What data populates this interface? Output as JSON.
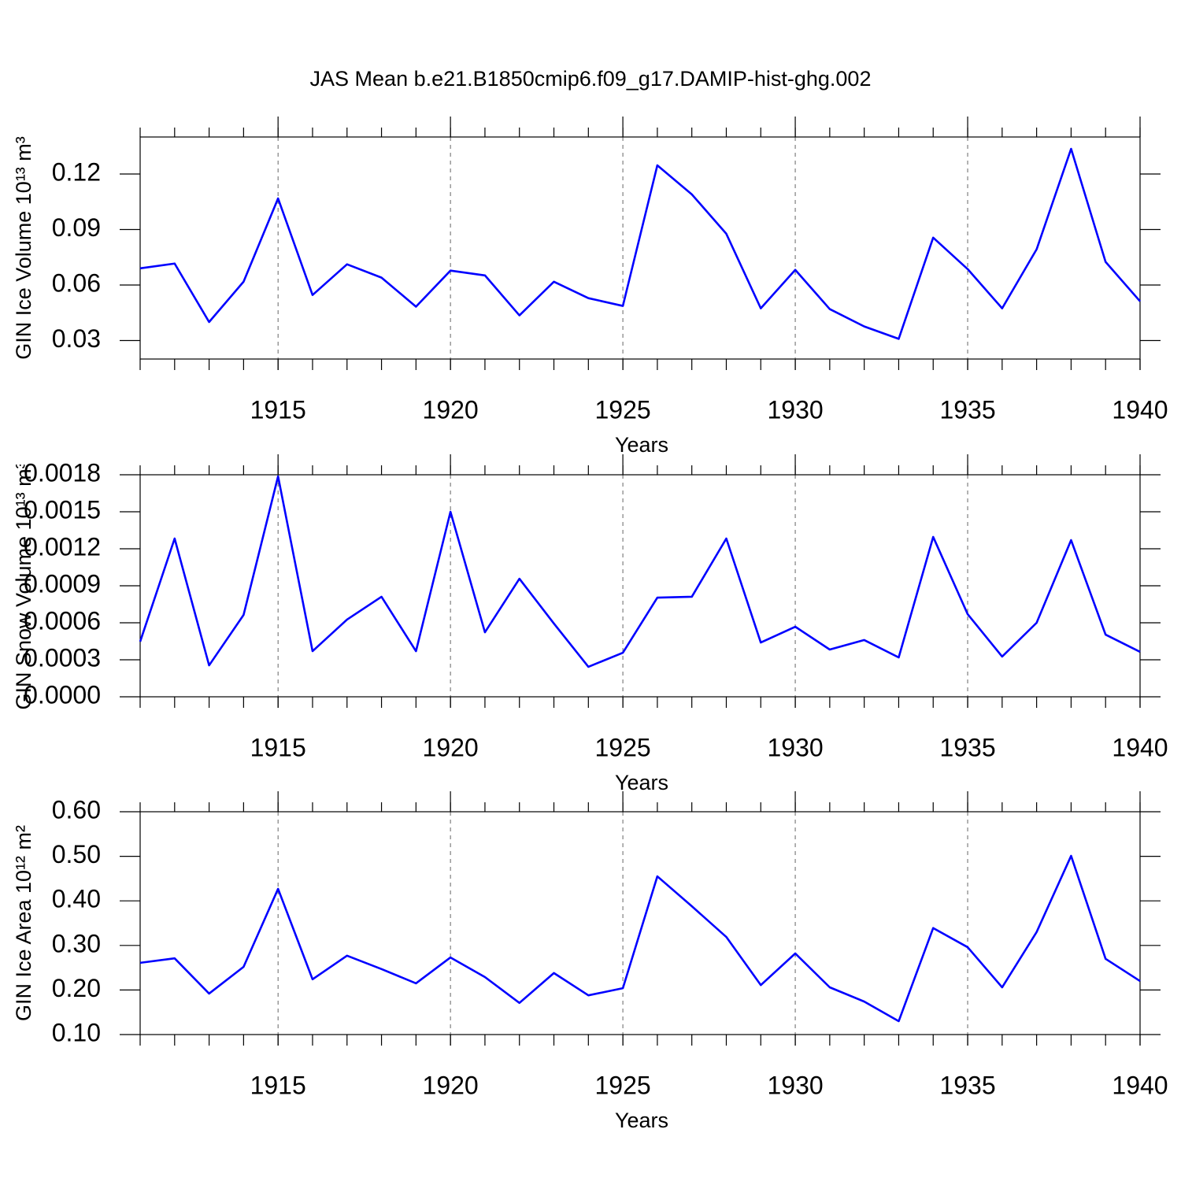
{
  "title": "JAS Mean b.e21.B1850cmip6.f09_g17.DAMIP-hist-ghg.002",
  "chart_data": [
    {
      "type": "line",
      "x_label": "Years",
      "y_label": "GIN Ice Volume 10¹³ m³",
      "x": [
        1911,
        1912,
        1913,
        1914,
        1915,
        1916,
        1917,
        1918,
        1919,
        1920,
        1921,
        1922,
        1923,
        1924,
        1925,
        1926,
        1927,
        1928,
        1929,
        1930,
        1931,
        1932,
        1933,
        1934,
        1935,
        1936,
        1937,
        1938,
        1939,
        1940
      ],
      "series": [
        {
          "color": "#0000ff",
          "values": [
            0.069,
            0.0716,
            0.04,
            0.0618,
            0.1068,
            0.0546,
            0.0712,
            0.064,
            0.0483,
            0.0678,
            0.0652,
            0.0436,
            0.0618,
            0.0529,
            0.0487,
            0.1247,
            0.109,
            0.0877,
            0.0474,
            0.0682,
            0.047,
            0.0376,
            0.0309,
            0.0856,
            0.0686,
            0.0474,
            0.0793,
            0.1336,
            0.0725,
            0.0512
          ]
        }
      ],
      "xlim": [
        1911,
        1940
      ],
      "xticks": [
        1915,
        1920,
        1925,
        1930,
        1935,
        1940
      ],
      "ylim": [
        0.02,
        0.14
      ],
      "yticks": [
        0.03,
        0.06,
        0.09,
        0.12
      ],
      "grid": true
    },
    {
      "type": "line",
      "x_label": "Years",
      "y_label": "GIN Snow Volume 10¹³ m³",
      "x": [
        1911,
        1912,
        1913,
        1914,
        1915,
        1916,
        1917,
        1918,
        1919,
        1920,
        1921,
        1922,
        1923,
        1924,
        1925,
        1926,
        1927,
        1928,
        1929,
        1930,
        1931,
        1932,
        1933,
        1934,
        1935,
        1936,
        1937,
        1938,
        1939,
        1940
      ],
      "series": [
        {
          "color": "#0000ff",
          "values": [
            0.000447,
            0.001283,
            0.000255,
            0.000664,
            0.001787,
            0.00037,
            0.000626,
            0.000811,
            0.00037,
            0.0015,
            0.000523,
            0.000957,
            0.000594,
            0.000243,
            0.000357,
            0.000804,
            0.000811,
            0.001283,
            0.00044,
            0.000568,
            0.000383,
            0.00046,
            0.000319,
            0.001296,
            0.00067,
            0.000326,
            0.0006,
            0.00127,
            0.000504,
            0.000364
          ]
        }
      ],
      "xlim": [
        1911,
        1940
      ],
      "xticks": [
        1915,
        1920,
        1925,
        1930,
        1935,
        1940
      ],
      "ylim": [
        0,
        0.0018
      ],
      "yticks": [
        {
          "value": 0,
          "label": "0.0000"
        },
        0.0003,
        0.0006,
        0.0009,
        0.0012,
        0.0015,
        0.0018
      ],
      "grid": true
    },
    {
      "type": "line",
      "x_label": "Years",
      "y_label": "GIN Ice Area 10¹² m²",
      "x": [
        1911,
        1912,
        1913,
        1914,
        1915,
        1916,
        1917,
        1918,
        1919,
        1920,
        1921,
        1922,
        1923,
        1924,
        1925,
        1926,
        1927,
        1928,
        1929,
        1930,
        1931,
        1932,
        1933,
        1934,
        1935,
        1936,
        1937,
        1938,
        1939,
        1940
      ],
      "series": [
        {
          "color": "#0000ff",
          "values": [
            0.261,
            0.271,
            0.192,
            0.252,
            0.427,
            0.224,
            0.277,
            0.247,
            0.215,
            0.273,
            0.229,
            0.171,
            0.238,
            0.188,
            0.204,
            0.455,
            0.388,
            0.319,
            0.211,
            0.282,
            0.206,
            0.174,
            0.13,
            0.339,
            0.296,
            0.206,
            0.33,
            0.501,
            0.27,
            0.22
          ]
        }
      ],
      "xlim": [
        1911,
        1940
      ],
      "xticks": [
        1915,
        1920,
        1925,
        1930,
        1935,
        1940
      ],
      "ylim": [
        0.1,
        0.6
      ],
      "yticks": [
        {
          "value": 0.1,
          "label": "0.10"
        },
        {
          "value": 0.2,
          "label": "0.20"
        },
        {
          "value": 0.3,
          "label": "0.30"
        },
        {
          "value": 0.4,
          "label": "0.40"
        },
        {
          "value": 0.5,
          "label": "0.50"
        },
        {
          "value": 0.6,
          "label": "0.60"
        }
      ],
      "grid": true
    }
  ]
}
